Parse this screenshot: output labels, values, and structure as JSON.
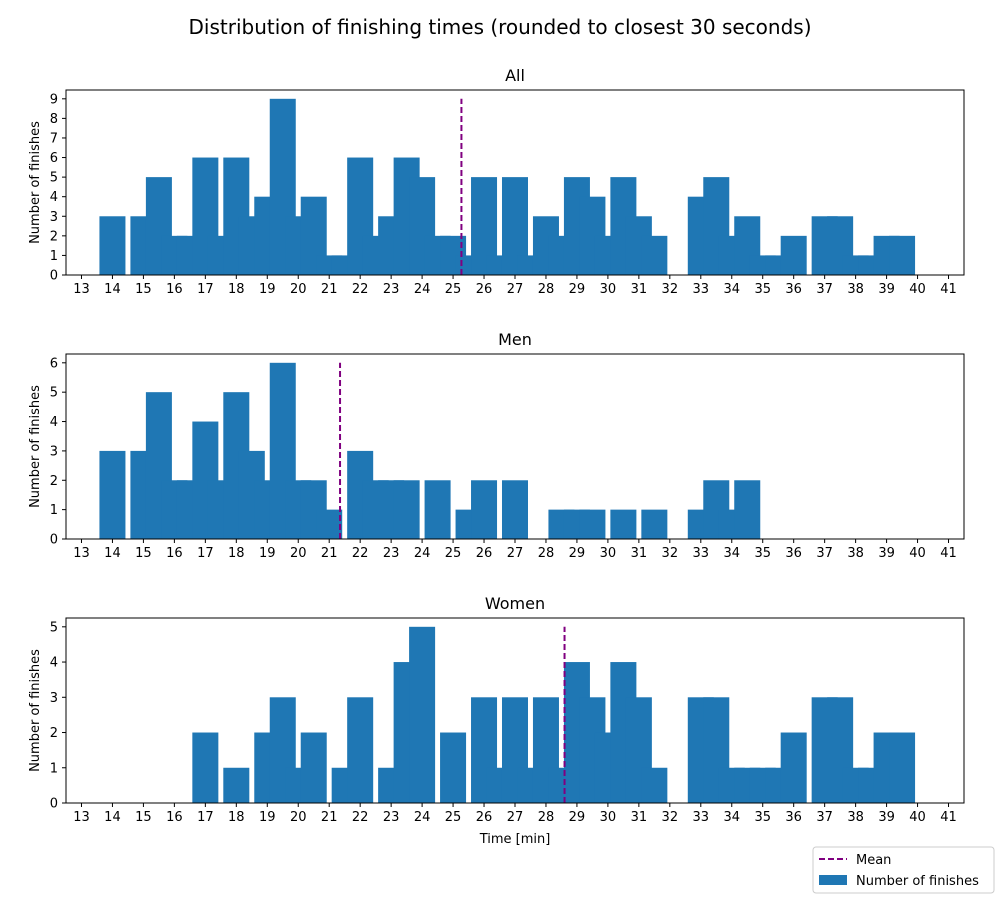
{
  "figure": {
    "title": "Distribution of finishing times (rounded to closest 30 seconds)"
  },
  "colors": {
    "bar": "#1f77b4",
    "mean_line": "#800080"
  },
  "legend": {
    "mean_label": "Mean",
    "bars_label": "Number of finishes",
    "placement": "lower-right"
  },
  "chart_data": [
    {
      "type": "bar",
      "title": "All",
      "xlabel": "",
      "ylabel": "Number of finishes",
      "x": [
        14,
        15,
        15.5,
        16,
        16.5,
        17,
        17.5,
        18,
        18.5,
        19,
        19.5,
        20,
        20.5,
        21,
        21.5,
        22,
        22.5,
        23,
        23.5,
        24,
        24.5,
        25,
        25.5,
        26,
        26.5,
        27,
        27.5,
        28,
        28.5,
        29,
        29.5,
        30,
        30.5,
        31,
        31.5,
        33,
        33.5,
        34,
        34.5,
        35,
        35.5,
        36,
        37,
        37.5,
        38,
        38.5,
        39,
        39.5
      ],
      "values": [
        3,
        3,
        5,
        2,
        2,
        6,
        2,
        6,
        3,
        4,
        9,
        3,
        4,
        1,
        1,
        6,
        2,
        3,
        6,
        5,
        2,
        2,
        1,
        5,
        1,
        5,
        1,
        3,
        2,
        5,
        4,
        2,
        5,
        3,
        2,
        4,
        5,
        2,
        3,
        1,
        1,
        2,
        3,
        3,
        1,
        1,
        2,
        2
      ],
      "mean": 25.27,
      "xlim": [
        12.5,
        41.5
      ],
      "ylim": [
        0,
        9.45
      ],
      "yticks": [
        0,
        1,
        2,
        3,
        4,
        5,
        6,
        7,
        8,
        9
      ],
      "xticks": [
        13,
        14,
        15,
        16,
        17,
        18,
        19,
        20,
        21,
        22,
        23,
        24,
        25,
        26,
        27,
        28,
        29,
        30,
        31,
        32,
        33,
        34,
        35,
        36,
        37,
        38,
        39,
        40,
        41
      ]
    },
    {
      "type": "bar",
      "title": "Men",
      "xlabel": "",
      "ylabel": "Number of finishes",
      "x": [
        14,
        15,
        15.5,
        16,
        16.5,
        17,
        17.5,
        18,
        18.5,
        19,
        19.5,
        20,
        20.5,
        21,
        22,
        22.5,
        23,
        23.5,
        24.5,
        25.5,
        26,
        27,
        28.5,
        29,
        29.5,
        30.5,
        31.5,
        33,
        33.5,
        34,
        34.5
      ],
      "values": [
        3,
        3,
        5,
        2,
        2,
        4,
        2,
        5,
        3,
        2,
        6,
        2,
        2,
        1,
        3,
        2,
        2,
        2,
        2,
        1,
        2,
        2,
        1,
        1,
        1,
        1,
        1,
        1,
        2,
        1,
        2
      ],
      "mean": 21.35,
      "xlim": [
        12.5,
        41.5
      ],
      "ylim": [
        0,
        6.3
      ],
      "yticks": [
        0,
        1,
        2,
        3,
        4,
        5,
        6
      ],
      "xticks": [
        13,
        14,
        15,
        16,
        17,
        18,
        19,
        20,
        21,
        22,
        23,
        24,
        25,
        26,
        27,
        28,
        29,
        30,
        31,
        32,
        33,
        34,
        35,
        36,
        37,
        38,
        39,
        40,
        41
      ]
    },
    {
      "type": "bar",
      "title": "Women",
      "xlabel": "Time [min]",
      "ylabel": "Number of finishes",
      "x": [
        17,
        18,
        19,
        19.5,
        20,
        20.5,
        21.5,
        22,
        23,
        23.5,
        24,
        25,
        26,
        26.5,
        27,
        27.5,
        28,
        28.5,
        29,
        29.5,
        30,
        30.5,
        31,
        31.5,
        33,
        33.5,
        34,
        34.5,
        35,
        35.5,
        36,
        37,
        37.5,
        38,
        38.5,
        39,
        39.5
      ],
      "values": [
        2,
        1,
        2,
        3,
        1,
        2,
        1,
        3,
        1,
        4,
        5,
        2,
        3,
        1,
        3,
        1,
        3,
        1,
        4,
        3,
        2,
        4,
        3,
        1,
        3,
        3,
        1,
        1,
        1,
        1,
        2,
        3,
        3,
        1,
        1,
        2,
        2
      ],
      "mean": 28.6,
      "xlim": [
        12.5,
        41.5
      ],
      "ylim": [
        0,
        5.25
      ],
      "yticks": [
        0,
        1,
        2,
        3,
        4,
        5
      ],
      "xticks": [
        13,
        14,
        15,
        16,
        17,
        18,
        19,
        20,
        21,
        22,
        23,
        24,
        25,
        26,
        27,
        28,
        29,
        30,
        31,
        32,
        33,
        34,
        35,
        36,
        37,
        38,
        39,
        40,
        41
      ]
    }
  ]
}
